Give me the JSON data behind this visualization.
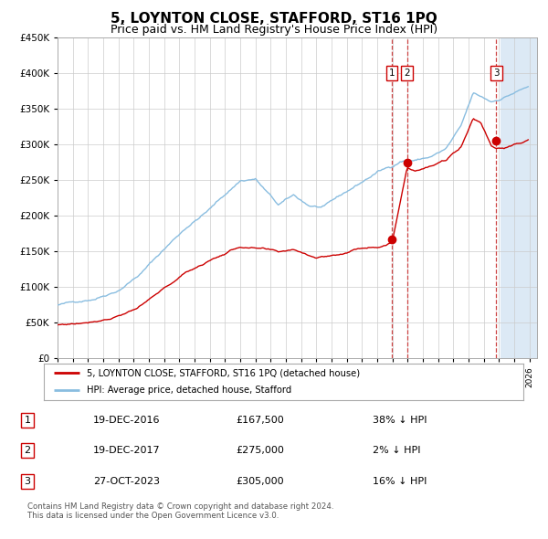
{
  "title": "5, LOYNTON CLOSE, STAFFORD, ST16 1PQ",
  "subtitle": "Price paid vs. HM Land Registry's House Price Index (HPI)",
  "title_fontsize": 11,
  "subtitle_fontsize": 9,
  "ylim": [
    0,
    450000
  ],
  "yticks": [
    0,
    50000,
    100000,
    150000,
    200000,
    250000,
    300000,
    350000,
    400000,
    450000
  ],
  "ytick_labels": [
    "£0",
    "£50K",
    "£100K",
    "£150K",
    "£200K",
    "£250K",
    "£300K",
    "£350K",
    "£400K",
    "£450K"
  ],
  "xlim_start": 1995.0,
  "xlim_end": 2026.5,
  "hpi_color": "#89bde0",
  "price_color": "#cc0000",
  "dashed_line_color": "#cc4444",
  "marker_color": "#cc0000",
  "bg_color": "#ffffff",
  "grid_color": "#cccccc",
  "legend_box_color": "#cc0000",
  "purchases": [
    {
      "date_year": 2016.96,
      "price": 167500,
      "label": "1"
    },
    {
      "date_year": 2017.96,
      "price": 275000,
      "label": "2"
    },
    {
      "date_year": 2023.82,
      "price": 305000,
      "label": "3"
    }
  ],
  "purchase_table": [
    {
      "num": "1",
      "date": "19-DEC-2016",
      "price": "£167,500",
      "diff": "38% ↓ HPI"
    },
    {
      "num": "2",
      "date": "19-DEC-2017",
      "price": "£275,000",
      "diff": "2% ↓ HPI"
    },
    {
      "num": "3",
      "date": "27-OCT-2023",
      "price": "£305,000",
      "diff": "16% ↓ HPI"
    }
  ],
  "legend_entries": [
    "5, LOYNTON CLOSE, STAFFORD, ST16 1PQ (detached house)",
    "HPI: Average price, detached house, Stafford"
  ],
  "footnote": "Contains HM Land Registry data © Crown copyright and database right 2024.\nThis data is licensed under the Open Government Licence v3.0.",
  "shaded_region_start": 2024.08,
  "shaded_region_end": 2026.5,
  "shaded_color": "#dce9f5"
}
